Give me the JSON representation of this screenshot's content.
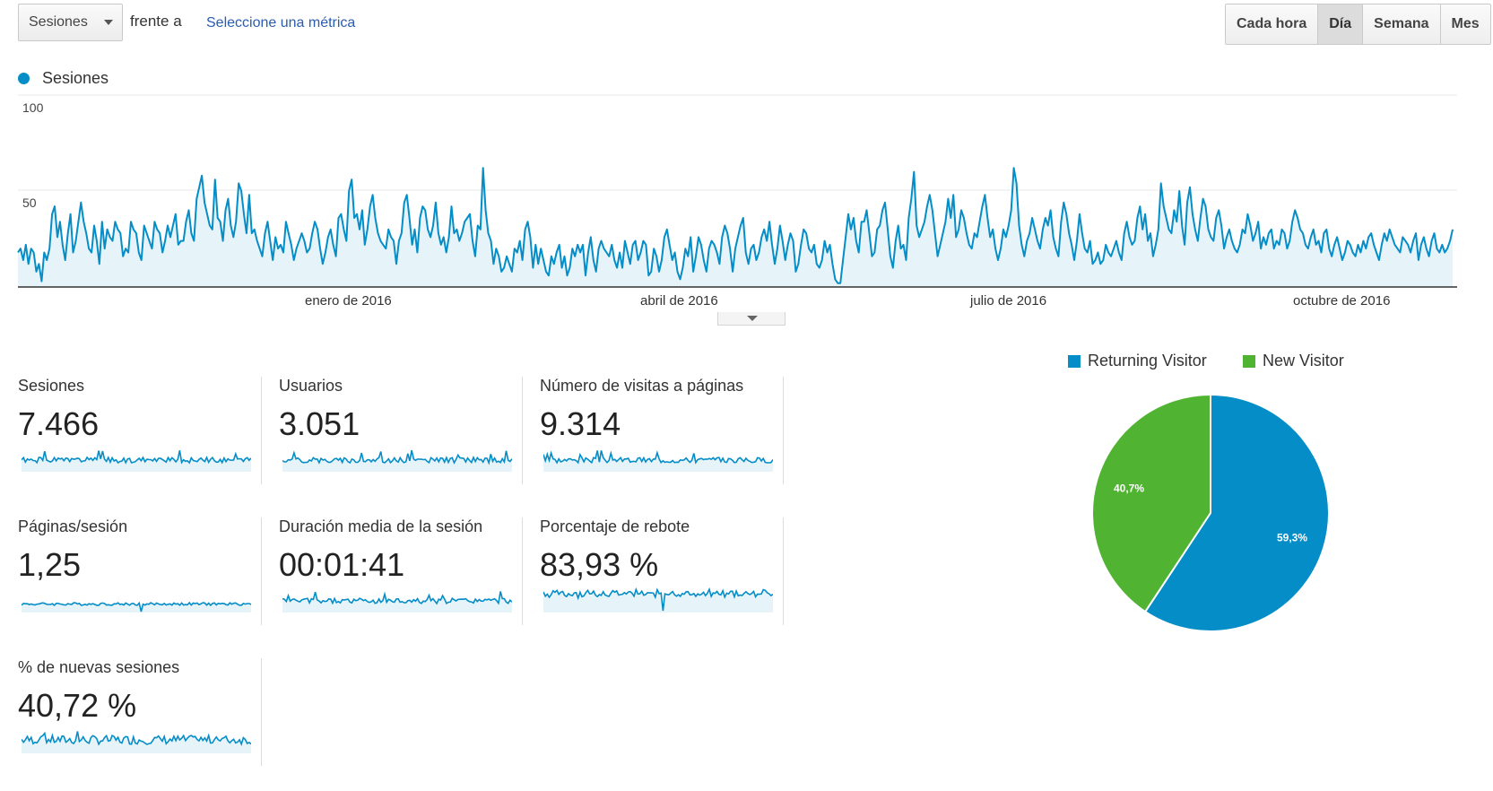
{
  "toolbar": {
    "metric_select": "Sesiones",
    "versus_label": "frente a",
    "select_metric_link": "Seleccione una métrica",
    "periods": [
      "Cada hora",
      "Día",
      "Semana",
      "Mes"
    ],
    "active_period": "Día"
  },
  "chart_data": {
    "type": "area",
    "title": "",
    "legend": [
      "Sesiones"
    ],
    "series_color": "#058dc7",
    "ylim": [
      0,
      100
    ],
    "y_ticks": [
      "100",
      "50"
    ],
    "x_tick_labels": [
      "enero de 2016",
      "abril de 2016",
      "julio de 2016",
      "octubre de 2016"
    ],
    "values": [
      18,
      20,
      14,
      22,
      12,
      20,
      18,
      8,
      12,
      3,
      18,
      14,
      20,
      38,
      42,
      26,
      34,
      22,
      14,
      28,
      38,
      18,
      24,
      34,
      44,
      34,
      28,
      20,
      18,
      32,
      24,
      12,
      34,
      20,
      30,
      26,
      24,
      34,
      30,
      28,
      16,
      20,
      18,
      34,
      30,
      28,
      18,
      14,
      32,
      28,
      24,
      20,
      34,
      30,
      28,
      18,
      24,
      32,
      26,
      32,
      38,
      22,
      24,
      24,
      34,
      40,
      28,
      24,
      46,
      52,
      58,
      44,
      38,
      32,
      30,
      56,
      36,
      34,
      24,
      40,
      46,
      32,
      26,
      34,
      54,
      50,
      38,
      28,
      48,
      28,
      30,
      24,
      20,
      16,
      28,
      34,
      24,
      14,
      26,
      20,
      22,
      18,
      34,
      28,
      22,
      14,
      20,
      24,
      28,
      24,
      18,
      20,
      28,
      34,
      30,
      20,
      12,
      18,
      26,
      30,
      22,
      16,
      36,
      38,
      30,
      24,
      50,
      56,
      36,
      38,
      30,
      40,
      22,
      30,
      42,
      48,
      36,
      28,
      24,
      22,
      20,
      30,
      26,
      24,
      12,
      24,
      28,
      44,
      48,
      36,
      22,
      30,
      18,
      36,
      42,
      40,
      30,
      26,
      32,
      44,
      28,
      22,
      26,
      18,
      26,
      42,
      28,
      30,
      24,
      28,
      34,
      36,
      38,
      24,
      16,
      32,
      30,
      62,
      40,
      28,
      24,
      12,
      20,
      16,
      8,
      10,
      16,
      12,
      8,
      20,
      18,
      24,
      14,
      30,
      34,
      26,
      10,
      22,
      12,
      20,
      14,
      8,
      6,
      16,
      12,
      18,
      22,
      10,
      16,
      6,
      10,
      20,
      16,
      22,
      18,
      22,
      6,
      18,
      26,
      14,
      8,
      20,
      24,
      20,
      18,
      16,
      22,
      14,
      10,
      18,
      10,
      24,
      18,
      12,
      22,
      24,
      14,
      18,
      24,
      22,
      6,
      8,
      20,
      16,
      8,
      14,
      26,
      30,
      22,
      14,
      18,
      8,
      4,
      10,
      20,
      16,
      26,
      8,
      16,
      26,
      22,
      14,
      8,
      20,
      24,
      22,
      18,
      12,
      26,
      32,
      28,
      20,
      8,
      20,
      26,
      32,
      36,
      18,
      12,
      20,
      22,
      14,
      18,
      26,
      30,
      24,
      34,
      22,
      12,
      20,
      32,
      24,
      14,
      22,
      28,
      24,
      8,
      12,
      22,
      30,
      28,
      20,
      18,
      22,
      12,
      10,
      14,
      24,
      18,
      22,
      12,
      4,
      2,
      2,
      14,
      26,
      38,
      30,
      36,
      24,
      18,
      34,
      34,
      40,
      28,
      16,
      18,
      30,
      32,
      40,
      44,
      30,
      16,
      10,
      24,
      32,
      20,
      22,
      14,
      36,
      46,
      60,
      32,
      26,
      30,
      34,
      42,
      48,
      40,
      28,
      16,
      22,
      28,
      34,
      46,
      36,
      48,
      26,
      30,
      40,
      36,
      28,
      22,
      20,
      28,
      26,
      34,
      42,
      48,
      36,
      26,
      30,
      20,
      14,
      20,
      30,
      26,
      32,
      40,
      62,
      54,
      32,
      22,
      16,
      24,
      28,
      36,
      30,
      24,
      20,
      30,
      36,
      32,
      40,
      26,
      20,
      16,
      34,
      44,
      38,
      28,
      22,
      14,
      24,
      38,
      28,
      20,
      18,
      24,
      12,
      14,
      18,
      12,
      14,
      22,
      18,
      16,
      20,
      24,
      18,
      14,
      28,
      34,
      26,
      22,
      24,
      36,
      42,
      30,
      38,
      24,
      28,
      16,
      22,
      30,
      54,
      42,
      36,
      30,
      28,
      40,
      34,
      50,
      32,
      22,
      44,
      52,
      38,
      30,
      24,
      36,
      46,
      42,
      30,
      26,
      24,
      36,
      40,
      32,
      20,
      26,
      30,
      24,
      20,
      18,
      22,
      30,
      28,
      38,
      32,
      24,
      28,
      34,
      20,
      26,
      22,
      28,
      30,
      20,
      24,
      22,
      30,
      28,
      20,
      24,
      34,
      40,
      36,
      30,
      28,
      22,
      20,
      26,
      30,
      22,
      24,
      18,
      28,
      30,
      20,
      16,
      22,
      26,
      20,
      14,
      18,
      24,
      22,
      18,
      16,
      22,
      18,
      24,
      20,
      26,
      28,
      22,
      18,
      14,
      22,
      28,
      24,
      30,
      26,
      22,
      20,
      18,
      26,
      24,
      22,
      18,
      24,
      28,
      14,
      22,
      26,
      20,
      16,
      24,
      28,
      20,
      18,
      22,
      18,
      20,
      24,
      30
    ]
  },
  "metrics": [
    {
      "title": "Sesiones",
      "value": "7.466"
    },
    {
      "title": "Usuarios",
      "value": "3.051"
    },
    {
      "title": "Número de visitas a páginas",
      "value": "9.314"
    },
    {
      "title": "Páginas/sesión",
      "value": "1,25"
    },
    {
      "title": "Duración media de la sesión",
      "value": "00:01:41"
    },
    {
      "title": "Porcentaje de rebote",
      "value": "83,93 %"
    },
    {
      "title": "% de nuevas sesiones",
      "value": "40,72 %"
    }
  ],
  "pie_chart": {
    "type": "pie",
    "legend": [
      "Returning Visitor",
      "New Visitor"
    ],
    "values": [
      59.3,
      40.7
    ],
    "labels": [
      "59,3%",
      "40,7%"
    ],
    "colors": [
      "#058dc7",
      "#50b432"
    ]
  }
}
